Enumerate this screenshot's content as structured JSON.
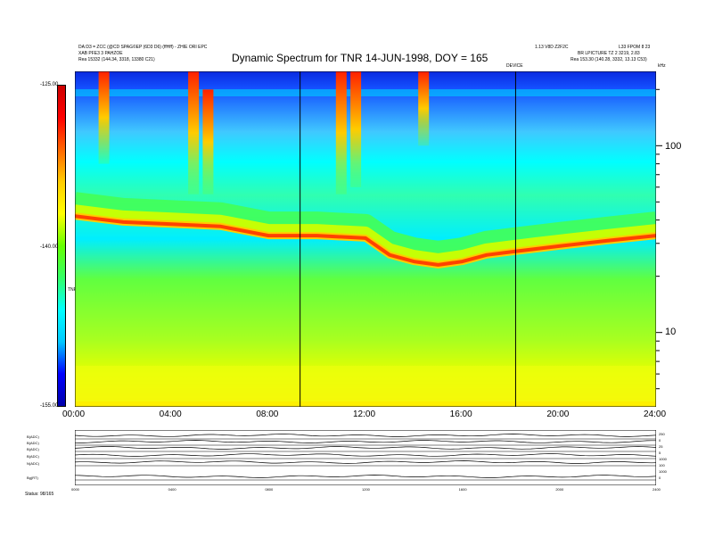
{
  "header": {
    "left_line1": "DA:D3 = ZCC (@CD SPAG©EP (6D3 D6) (ffHff) - ZHIE ORI EPC",
    "left_line2": "XAB PFE3 3 PAHZOE",
    "left_line3": "Rea   15332 (144.34, 3318, 13380 C21)",
    "right_line1": "1.13 V8D Z2F2C",
    "right_line2": "L33 FPOM 8 23",
    "right_line3": "BR LPICTURE  TZ 2 3219, 2.83",
    "right_line4": "Rea   153.30 (140.28, 3332, 13.13 C53)",
    "top_right_unit": "kHz"
  },
  "chart_data": {
    "type": "heatmap",
    "title": "Dynamic Spectrum for TNR 14-JUN-1998, DOY = 165",
    "x": {
      "tick_labels": [
        "00:00",
        "04:00",
        "08:00",
        "12:00",
        "16:00",
        "20:00",
        "24:00"
      ],
      "hours": [
        0,
        4,
        8,
        12,
        16,
        20,
        24
      ],
      "range": [
        0,
        24
      ]
    },
    "y_right": {
      "scale": "log",
      "tick_labels": [
        "10",
        "100"
      ],
      "tick_values": [
        10,
        100
      ],
      "range": [
        4,
        250
      ],
      "unit": "kHz"
    },
    "colorbar": {
      "tick_labels": [
        "-125.00",
        "-140.00",
        "-155.00"
      ],
      "tick_values": [
        -125,
        -140,
        -155
      ],
      "range": [
        -155,
        -125
      ],
      "label": "TNR",
      "colors": [
        "#0000aa",
        "#0000ff",
        "#00c8ff",
        "#00ffff",
        "#33ff66",
        "#66ff00",
        "#ffff00",
        "#ffcc00",
        "#ff6600",
        "#ff0000",
        "#cc0000"
      ]
    },
    "markers": {
      "vertical_lines_hours": [
        9.3,
        18.2
      ],
      "event_label": "DEVICE"
    },
    "emission_band": {
      "hours": [
        0,
        2,
        4,
        6,
        8,
        10,
        12,
        13,
        14,
        15,
        16,
        17,
        18,
        19,
        20,
        22,
        24
      ],
      "freq_khz": [
        42,
        39,
        38,
        37,
        33,
        33,
        32,
        26,
        24,
        23,
        24,
        26,
        27,
        28,
        29,
        31,
        33
      ]
    },
    "bursts": [
      {
        "hour": 1.2,
        "low_khz": 80,
        "high_khz": 250
      },
      {
        "hour": 4.9,
        "low_khz": 55,
        "high_khz": 250
      },
      {
        "hour": 5.5,
        "low_khz": 55,
        "high_khz": 200
      },
      {
        "hour": 11.0,
        "low_khz": 55,
        "high_khz": 250
      },
      {
        "hour": 11.6,
        "low_khz": 60,
        "high_khz": 250
      },
      {
        "hour": 14.4,
        "low_khz": 100,
        "high_khz": 250
      }
    ]
  },
  "bottom_panel": {
    "row_labels": [
      "B(ADC)",
      "B(ADC)",
      "B(ADC)",
      "B(ADC)",
      "N(ADC)",
      "Bg(RT)"
    ],
    "right_scale": [
      "250",
      "0",
      "25",
      "5",
      "1000",
      "100",
      "1000",
      "0"
    ],
    "x_tick_labels": [
      "0000",
      "0400",
      "0800",
      "1200",
      "1600",
      "2000",
      "2400"
    ],
    "footer_left": "Status: 98/165"
  }
}
